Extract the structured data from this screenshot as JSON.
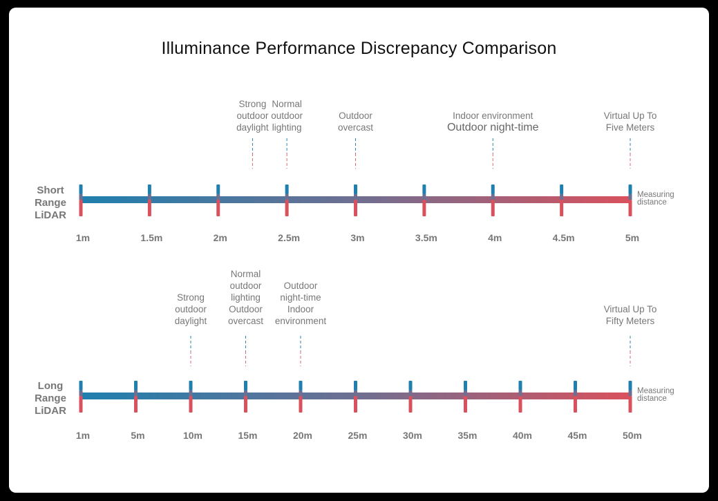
{
  "title": "Illuminance Performance Discrepancy Comparison",
  "colors": {
    "start": "#1f7fae",
    "end": "#d9515d",
    "background": "#ffffff",
    "frame": "#000000"
  },
  "rows": [
    {
      "id": "short",
      "label_lines": [
        "Short",
        "Range",
        "LiDAR"
      ],
      "ticks": [
        "1m",
        "1.5m",
        "2m",
        "2.5m",
        "3m",
        "3.5m",
        "4m",
        "4.5m",
        "5m"
      ],
      "measuring_lines": [
        "Measuring",
        "distance"
      ],
      "conditions": [
        {
          "lines": [
            "Strong",
            "outdoor",
            "daylight"
          ],
          "position": 2.5,
          "emphasis": []
        },
        {
          "lines": [
            "Normal",
            "outdoor",
            "lighting"
          ],
          "position": 3,
          "emphasis": []
        },
        {
          "lines": [
            "Outdoor",
            "overcast"
          ],
          "position": 4,
          "emphasis": []
        },
        {
          "lines": [
            "Indoor environment",
            "Outdoor night-time"
          ],
          "position": 6,
          "emphasis": [
            1
          ]
        },
        {
          "lines": [
            "Virtual Up To",
            "Five Meters"
          ],
          "position": 8,
          "emphasis": []
        }
      ]
    },
    {
      "id": "long",
      "label_lines": [
        "Long",
        "Range",
        "LiDAR"
      ],
      "ticks": [
        "1m",
        "5m",
        "10m",
        "15m",
        "20m",
        "25m",
        "30m",
        "35m",
        "40m",
        "45m",
        "50m"
      ],
      "measuring_lines": [
        "Measuring",
        "distance"
      ],
      "conditions": [
        {
          "lines": [
            "Strong",
            "outdoor",
            "daylight"
          ],
          "position": 2,
          "emphasis": []
        },
        {
          "lines": [
            "Normal",
            "outdoor",
            "lighting",
            "Outdoor",
            "overcast"
          ],
          "position": 3,
          "emphasis": []
        },
        {
          "lines": [
            "Outdoor",
            "night-time",
            "Indoor",
            "environment"
          ],
          "position": 4,
          "emphasis": []
        },
        {
          "lines": [
            "Virtual Up To",
            "Fifty Meters"
          ],
          "position": 10,
          "emphasis": []
        }
      ]
    }
  ]
}
